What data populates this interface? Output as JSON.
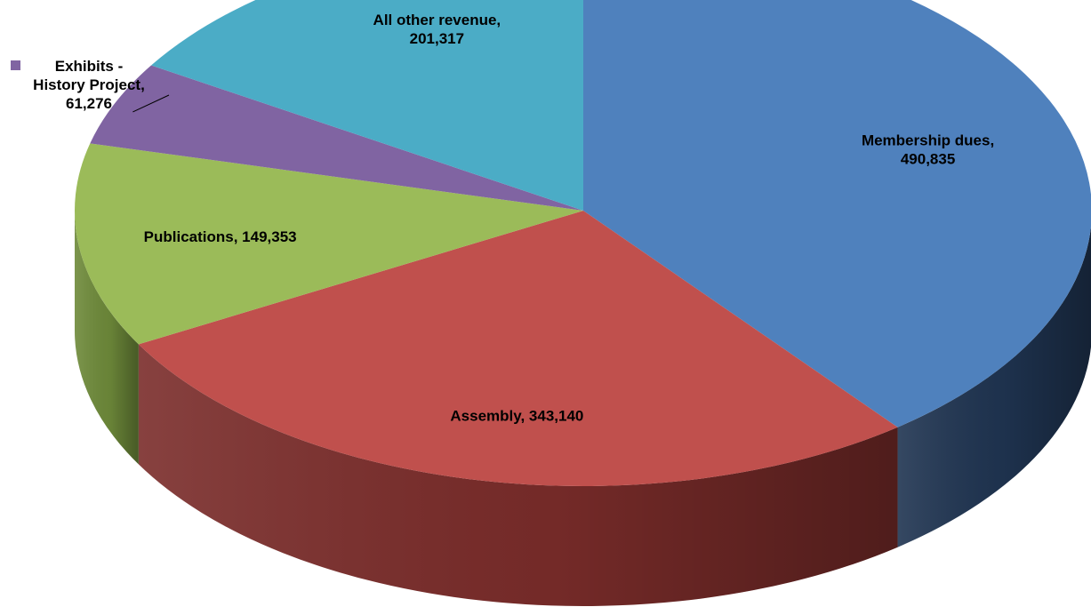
{
  "chart_data": {
    "type": "pie",
    "style": "3d",
    "slices": [
      {
        "name": "Membership dues",
        "value": 490835,
        "label_lines": [
          "Membership dues,",
          "490,835"
        ],
        "color": "#4F81BD",
        "side_color": "#1F3451"
      },
      {
        "name": "Assembly",
        "value": 343140,
        "label_lines": [
          "Assembly,  343,140"
        ],
        "color": "#C0504D",
        "side_color": "#7A2C2A"
      },
      {
        "name": "Publications",
        "value": 149353,
        "label_lines": [
          "Publications,  149,353"
        ],
        "color": "#9BBB59",
        "side_color": "#6E8A3A"
      },
      {
        "name": "Exhibits - History Project",
        "value": 61276,
        "label_lines": [
          "Exhibits -",
          "History Project,",
          "61,276"
        ],
        "color": "#8064A2",
        "side_color": "#5A4575",
        "legend_marker": true
      },
      {
        "name": "All other revenue",
        "value": 201317,
        "label_lines": [
          "All other revenue,",
          "201,317"
        ],
        "color": "#4BACC6",
        "side_color": "#2E7C90"
      }
    ],
    "legend": "none",
    "data_labels": "name, value"
  }
}
